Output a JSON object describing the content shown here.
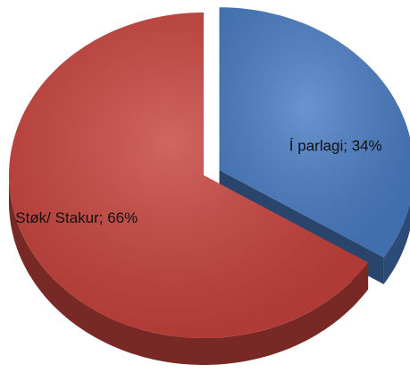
{
  "chart_data": {
    "type": "pie",
    "values": [
      34,
      66
    ],
    "value_labels": [
      "Í parlagi; 34%",
      "Støk/ Stakur; 66%"
    ],
    "colors": [
      "#4a7dc4",
      "#c8433d"
    ],
    "exploded": [
      true,
      false
    ]
  }
}
